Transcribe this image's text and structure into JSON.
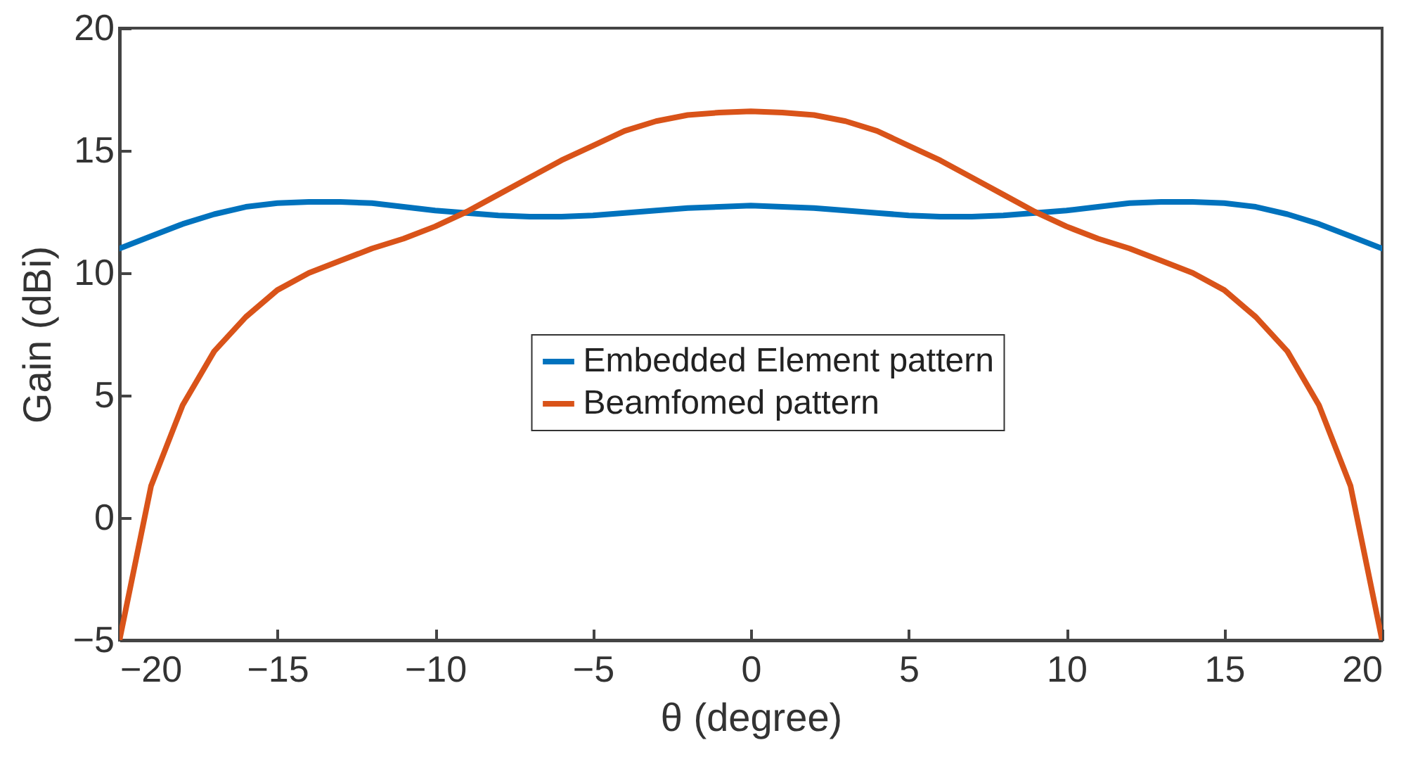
{
  "chart_data": {
    "type": "line",
    "xlabel": "θ (degree)",
    "ylabel": "Gain (dBi)",
    "x": [
      -20,
      -19,
      -18,
      -17,
      -16,
      -15,
      -14,
      -13,
      -12,
      -11,
      -10,
      -9,
      -8,
      -7,
      -6,
      -5,
      -4,
      -3,
      -2,
      -1,
      0,
      1,
      2,
      3,
      4,
      5,
      6,
      7,
      8,
      9,
      10,
      11,
      12,
      13,
      14,
      15,
      16,
      17,
      18,
      19,
      20
    ],
    "series": [
      {
        "name": "Embedded Element pattern",
        "color": "#0072bd",
        "values": [
          11.0,
          11.5,
          12.0,
          12.4,
          12.7,
          12.85,
          12.9,
          12.9,
          12.85,
          12.7,
          12.55,
          12.45,
          12.35,
          12.3,
          12.3,
          12.35,
          12.45,
          12.55,
          12.65,
          12.7,
          12.75,
          12.7,
          12.65,
          12.55,
          12.45,
          12.35,
          12.3,
          12.3,
          12.35,
          12.45,
          12.55,
          12.7,
          12.85,
          12.9,
          12.9,
          12.85,
          12.7,
          12.4,
          12.0,
          11.5,
          11.0
        ]
      },
      {
        "name": "Beamfomed pattern",
        "color": "#d95319",
        "values": [
          -5,
          1.3,
          4.6,
          6.8,
          8.2,
          9.3,
          10.0,
          10.5,
          11.0,
          11.4,
          11.9,
          12.5,
          13.2,
          13.9,
          14.6,
          15.2,
          15.8,
          16.2,
          16.45,
          16.55,
          16.6,
          16.55,
          16.45,
          16.2,
          15.8,
          15.2,
          14.6,
          13.9,
          13.2,
          12.5,
          11.9,
          11.4,
          11.0,
          10.5,
          10.0,
          9.3,
          8.2,
          6.8,
          4.6,
          1.3,
          -5
        ]
      }
    ],
    "xlim": [
      -20,
      20
    ],
    "xticks": [
      -20,
      -15,
      -10,
      -5,
      0,
      5,
      10,
      15,
      20
    ],
    "ylim": [
      -5,
      20
    ],
    "yticks": [
      -5,
      0,
      5,
      10,
      15,
      20
    ],
    "grid": false,
    "legend": "center",
    "marker": "none",
    "line_style": "solid"
  }
}
